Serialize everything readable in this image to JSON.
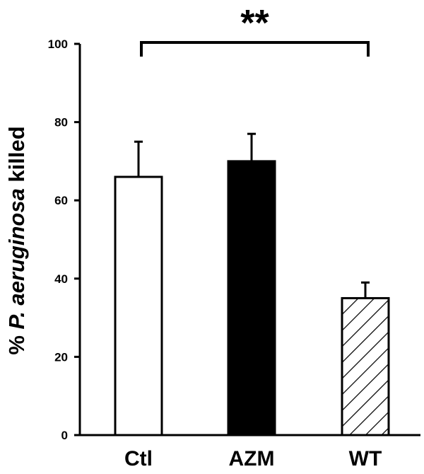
{
  "chart_data": {
    "type": "bar",
    "categories": [
      "Ctl",
      "AZM",
      "WT"
    ],
    "values": [
      66,
      70,
      35
    ],
    "errors": [
      9,
      7,
      4
    ],
    "fills": [
      "white",
      "black",
      "hatched"
    ],
    "ylabel_prefix": "% ",
    "ylabel_italic": "P. aeruginosa",
    "ylabel_suffix": " killed",
    "ylim": [
      0,
      100
    ],
    "yticks": [
      0,
      20,
      40,
      60,
      80,
      100
    ],
    "grid": false,
    "significance": {
      "label": "**",
      "from": "Ctl",
      "to": "WT"
    }
  }
}
